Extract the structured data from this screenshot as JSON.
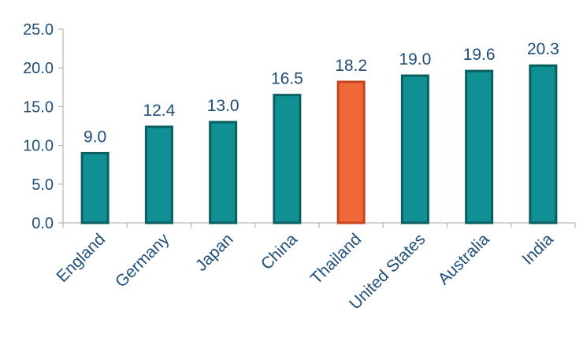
{
  "chart_data": {
    "type": "bar",
    "title": "",
    "xlabel": "",
    "ylabel": "",
    "ylim": [
      0,
      25
    ],
    "y_ticks": [
      "0.0",
      "5.0",
      "10.0",
      "15.0",
      "20.0",
      "25.0"
    ],
    "categories": [
      "England",
      "Germany",
      "Japan",
      "China",
      "Thailand",
      "United States",
      "Australia",
      "India"
    ],
    "values": [
      9.0,
      12.4,
      13.0,
      16.5,
      18.2,
      19.0,
      19.6,
      20.3
    ],
    "value_labels": [
      "9.0",
      "12.4",
      "13.0",
      "16.5",
      "18.2",
      "19.0",
      "19.6",
      "20.3"
    ],
    "highlight_category": "Thailand",
    "grid": false,
    "legend": "none",
    "colors": {
      "bar_fill": "#109092",
      "bar_stroke": "#0c5f60",
      "highlight_fill": "#f0693a",
      "highlight_stroke": "#c34323",
      "text": "#1f4e79",
      "axis": "#a6a6a6"
    }
  }
}
